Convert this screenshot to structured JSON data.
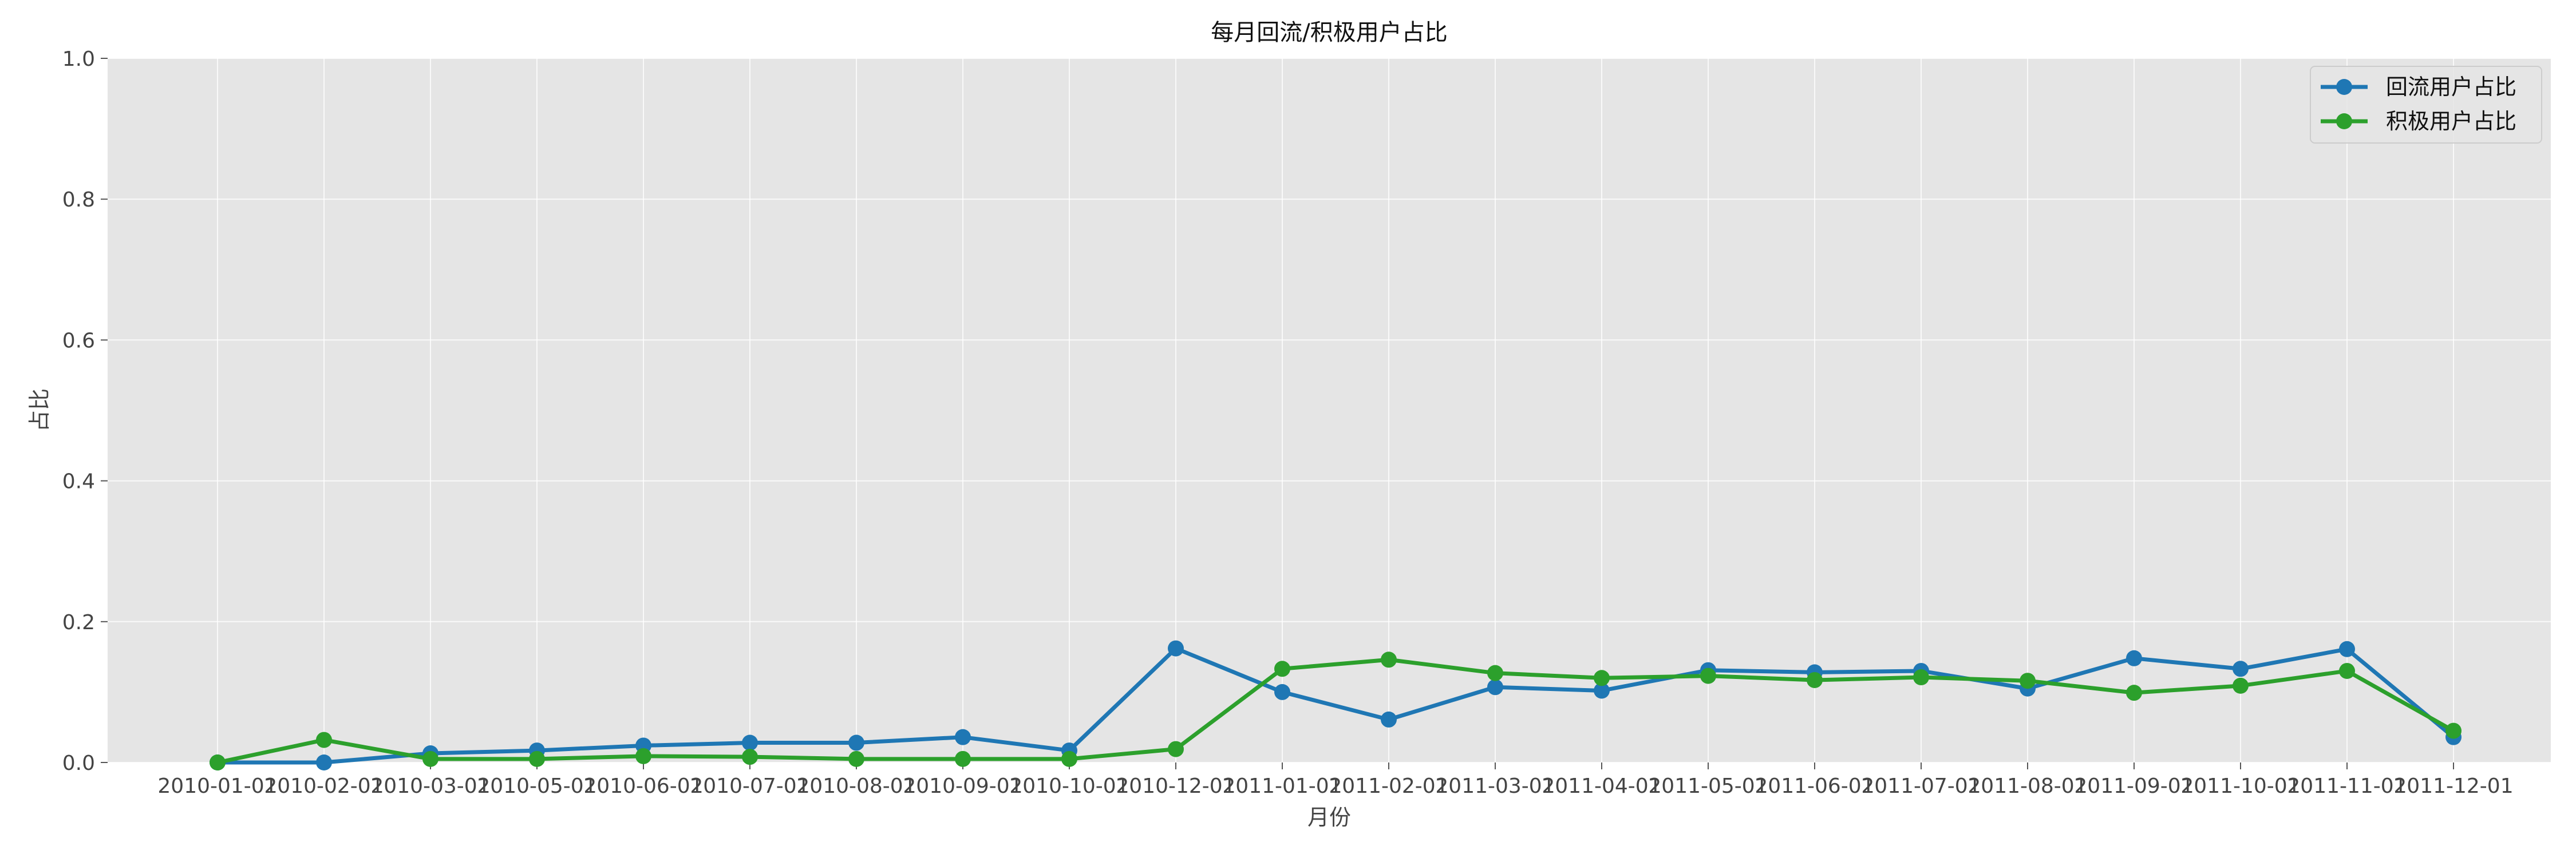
{
  "chart_data": {
    "type": "line",
    "title": "每月回流/积极用户占比",
    "xlabel": "月份",
    "ylabel": "占比",
    "ylim": [
      0,
      1.0
    ],
    "yticks": [
      "0.0",
      "0.2",
      "0.4",
      "0.6",
      "0.8",
      "1.0"
    ],
    "grid": true,
    "legend_position": "top-right",
    "categories": [
      "2010-01-01",
      "2010-02-01",
      "2010-03-01",
      "2010-05-01",
      "2010-06-01",
      "2010-07-01",
      "2010-08-01",
      "2010-09-01",
      "2010-10-01",
      "2010-12-01",
      "2011-01-01",
      "2011-02-01",
      "2011-03-01",
      "2011-04-01",
      "2011-05-01",
      "2011-06-01",
      "2011-07-01",
      "2011-08-01",
      "2011-09-01",
      "2011-10-01",
      "2011-11-01",
      "2011-12-01"
    ],
    "series": [
      {
        "name": "回流用户占比",
        "color": "#1f77b4",
        "values": [
          0.0,
          0.0,
          0.013,
          0.017,
          0.024,
          0.028,
          0.028,
          0.036,
          0.017,
          0.162,
          0.1,
          0.061,
          0.107,
          0.102,
          0.131,
          0.128,
          0.13,
          0.105,
          0.148,
          0.133,
          0.161,
          0.036
        ]
      },
      {
        "name": "积极用户占比",
        "color": "#2ca02c",
        "values": [
          0.0,
          0.032,
          0.005,
          0.005,
          0.009,
          0.008,
          0.005,
          0.005,
          0.005,
          0.019,
          0.133,
          0.146,
          0.127,
          0.12,
          0.123,
          0.117,
          0.121,
          0.116,
          0.099,
          0.109,
          0.13,
          0.045
        ]
      }
    ]
  }
}
